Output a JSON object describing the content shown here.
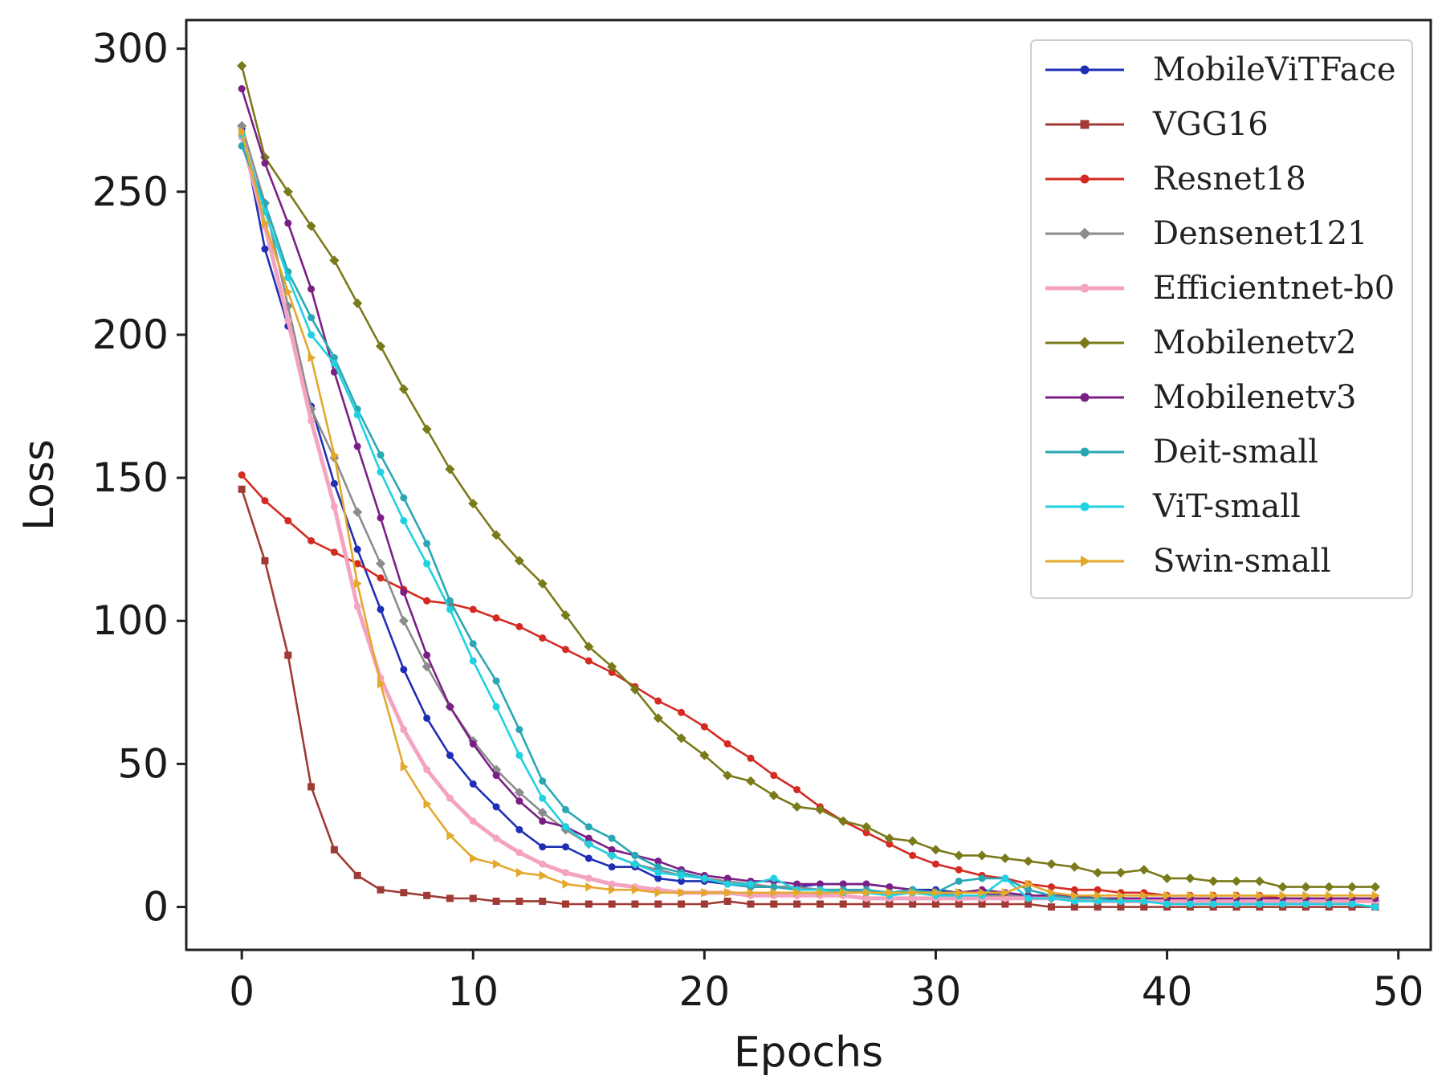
{
  "chart_data": {
    "type": "line",
    "title": "",
    "xlabel": "Epochs",
    "ylabel": "Loss",
    "xlim": [
      -2.4,
      51.4
    ],
    "ylim": [
      -15,
      310
    ],
    "xticks": [
      0,
      10,
      20,
      30,
      40,
      50
    ],
    "yticks": [
      0,
      50,
      100,
      150,
      200,
      250,
      300
    ],
    "grid": false,
    "legend_position": "top-right",
    "x": [
      0,
      1,
      2,
      3,
      4,
      5,
      6,
      7,
      8,
      9,
      10,
      11,
      12,
      13,
      14,
      15,
      16,
      17,
      18,
      19,
      20,
      21,
      22,
      23,
      24,
      25,
      26,
      27,
      28,
      29,
      30,
      31,
      32,
      33,
      34,
      35,
      36,
      37,
      38,
      39,
      40,
      41,
      42,
      43,
      44,
      45,
      46,
      47,
      48,
      49
    ],
    "series": [
      {
        "name": "MobileViTFace",
        "color": "#1f2fb5",
        "marker": "circle",
        "values": [
          272,
          230,
          203,
          175,
          148,
          125,
          104,
          83,
          66,
          53,
          43,
          35,
          27,
          21,
          21,
          17,
          14,
          14,
          10,
          9,
          9,
          8,
          7,
          7,
          7,
          8,
          8,
          8,
          7,
          6,
          6,
          5,
          5,
          4,
          4,
          4,
          3,
          3,
          3,
          3,
          2,
          2,
          2,
          2,
          2,
          2,
          2,
          2,
          2,
          2
        ]
      },
      {
        "name": "VGG16",
        "color": "#a03a34",
        "marker": "square",
        "values": [
          146,
          121,
          88,
          42,
          20,
          11,
          6,
          5,
          4,
          3,
          3,
          2,
          2,
          2,
          1,
          1,
          1,
          1,
          1,
          1,
          1,
          2,
          1,
          1,
          1,
          1,
          1,
          1,
          1,
          1,
          1,
          1,
          1,
          1,
          1,
          0,
          0,
          0,
          0,
          0,
          0,
          0,
          0,
          0,
          0,
          0,
          0,
          0,
          0,
          0
        ]
      },
      {
        "name": "Resnet18",
        "color": "#d42a22",
        "marker": "circle",
        "values": [
          151,
          142,
          135,
          128,
          124,
          120,
          115,
          111,
          107,
          106,
          104,
          101,
          98,
          94,
          90,
          86,
          82,
          77,
          72,
          68,
          63,
          57,
          52,
          46,
          41,
          35,
          30,
          26,
          22,
          18,
          15,
          13,
          11,
          10,
          8,
          7,
          6,
          6,
          5,
          5,
          4,
          4,
          4,
          4,
          4,
          3,
          3,
          3,
          3,
          3
        ]
      },
      {
        "name": "Densenet121",
        "color": "#8c8c8c",
        "marker": "diamond",
        "values": [
          273,
          246,
          210,
          174,
          157,
          138,
          120,
          100,
          84,
          70,
          58,
          48,
          40,
          33,
          27,
          22,
          18,
          15,
          13,
          11,
          10,
          9,
          8,
          7,
          7,
          6,
          6,
          5,
          5,
          5,
          5,
          4,
          4,
          4,
          4,
          3,
          3,
          3,
          3,
          3,
          3,
          3,
          3,
          2,
          2,
          2,
          2,
          2,
          2,
          2
        ]
      },
      {
        "name": "Efficientnet-b0",
        "color": "#f4a3c1",
        "marker": "circle",
        "values": [
          269,
          238,
          205,
          170,
          140,
          105,
          80,
          62,
          48,
          38,
          30,
          24,
          19,
          15,
          12,
          10,
          8,
          7,
          6,
          5,
          5,
          5,
          4,
          4,
          4,
          4,
          4,
          3,
          3,
          3,
          3,
          3,
          3,
          3,
          3,
          3,
          3,
          2,
          2,
          2,
          2,
          2,
          2,
          2,
          2,
          2,
          2,
          2,
          2,
          2
        ]
      },
      {
        "name": "Mobilenetv2",
        "color": "#7a7a1a",
        "marker": "diamond",
        "values": [
          294,
          262,
          250,
          238,
          226,
          211,
          196,
          181,
          167,
          153,
          141,
          130,
          121,
          113,
          102,
          91,
          84,
          76,
          66,
          59,
          53,
          46,
          44,
          39,
          35,
          34,
          30,
          28,
          24,
          23,
          20,
          18,
          18,
          17,
          16,
          15,
          14,
          12,
          12,
          13,
          10,
          10,
          9,
          9,
          9,
          7,
          7,
          7,
          7,
          7
        ]
      },
      {
        "name": "Mobilenetv3",
        "color": "#7b1f86",
        "marker": "circle",
        "values": [
          286,
          260,
          239,
          216,
          187,
          161,
          136,
          110,
          88,
          70,
          57,
          46,
          37,
          30,
          28,
          24,
          20,
          18,
          16,
          13,
          11,
          10,
          9,
          9,
          8,
          8,
          8,
          8,
          7,
          6,
          5,
          5,
          6,
          5,
          4,
          4,
          4,
          3,
          3,
          3,
          3,
          3,
          3,
          3,
          3,
          3,
          3,
          3,
          3,
          3
        ]
      },
      {
        "name": "Deit-small",
        "color": "#2aa7b4",
        "marker": "circle",
        "values": [
          266,
          246,
          222,
          206,
          192,
          174,
          158,
          143,
          127,
          107,
          92,
          79,
          62,
          44,
          34,
          28,
          24,
          18,
          14,
          12,
          10,
          8,
          7,
          7,
          6,
          6,
          6,
          6,
          5,
          6,
          5,
          9,
          10,
          10,
          6,
          4,
          3,
          3,
          2,
          2,
          1,
          1,
          1,
          1,
          1,
          1,
          1,
          1,
          1,
          0
        ]
      },
      {
        "name": "ViT-small",
        "color": "#1fd1e1",
        "marker": "circle",
        "values": [
          270,
          243,
          220,
          200,
          190,
          172,
          152,
          135,
          120,
          104,
          86,
          70,
          53,
          38,
          28,
          22,
          18,
          15,
          12,
          11,
          10,
          8,
          8,
          10,
          6,
          6,
          5,
          5,
          4,
          5,
          4,
          4,
          4,
          10,
          3,
          3,
          2,
          2,
          2,
          2,
          1,
          1,
          1,
          1,
          1,
          1,
          1,
          1,
          1,
          0
        ]
      },
      {
        "name": "Swin-small",
        "color": "#e3a82c",
        "marker": "triangle-right",
        "values": [
          271,
          239,
          215,
          192,
          158,
          113,
          78,
          49,
          36,
          25,
          17,
          15,
          12,
          11,
          8,
          7,
          6,
          6,
          5,
          5,
          5,
          5,
          5,
          5,
          5,
          5,
          5,
          5,
          5,
          5,
          5,
          5,
          5,
          5,
          8,
          5,
          4,
          4,
          4,
          4,
          4,
          4,
          4,
          4,
          4,
          4,
          4,
          4,
          4,
          4
        ]
      }
    ]
  }
}
